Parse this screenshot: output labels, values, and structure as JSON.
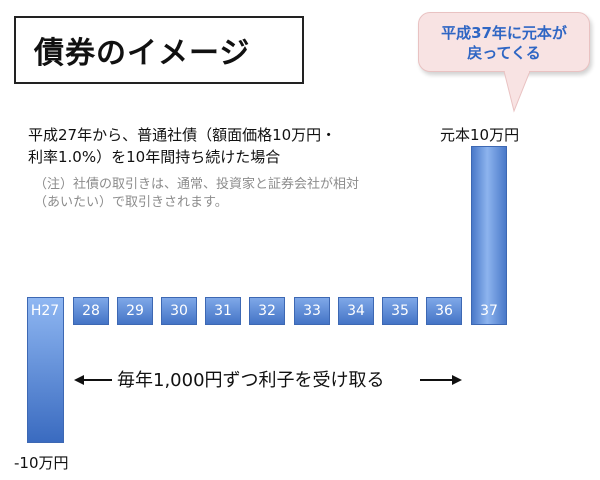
{
  "title": "債券のイメージ",
  "callout": {
    "line1": "平成37年に元本が",
    "line2": "戻ってくる"
  },
  "description": {
    "line1": "平成27年から、普通社債（額面価格10万円・",
    "line2": "利率1.0%）を10年間持ち続けた場合"
  },
  "note": {
    "line1": "（注）社債の取引きは、通常、投資家と証券会社が相対",
    "line2": "（あいたい）で取引きされます。"
  },
  "principal_label": "元本10万円",
  "negative_label": "-10万円",
  "years": [
    "H27",
    "28",
    "29",
    "30",
    "31",
    "32",
    "33",
    "34",
    "35",
    "36",
    "37"
  ],
  "interest_text": "毎年1,000円ずつ利子を受け取る"
}
